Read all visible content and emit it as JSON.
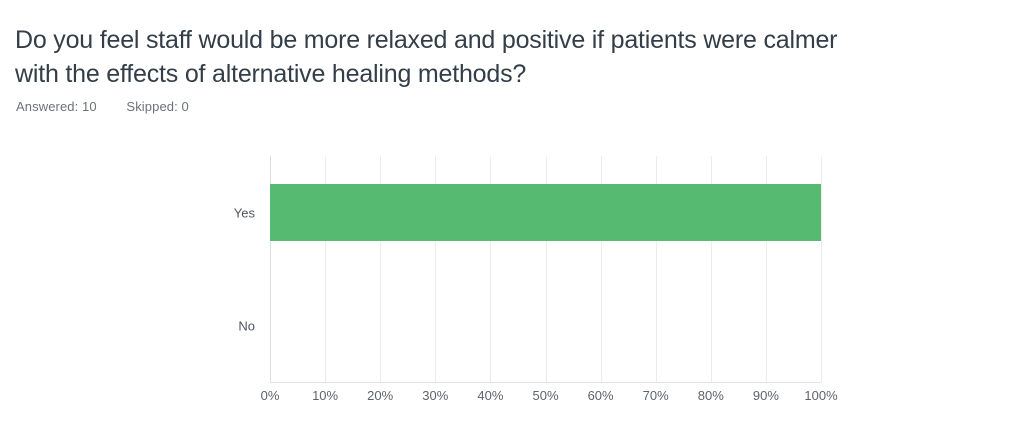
{
  "header": {
    "question": "Do you feel staff would be more relaxed and positive if patients were calmer with the effects of alternative healing methods?",
    "title_lines": [
      "Do you feel staff would be more relaxed and positive if patients were calmer",
      "with the effects of alternative healing methods?"
    ],
    "answered": "Answered: 10",
    "skipped": "Skipped: 0"
  },
  "chart_data": {
    "type": "bar",
    "orientation": "horizontal",
    "categories": [
      "Yes",
      "No"
    ],
    "values": [
      100,
      0
    ],
    "unit": "%",
    "xlim": [
      0,
      100
    ],
    "x_ticks": [
      "0%",
      "10%",
      "20%",
      "30%",
      "40%",
      "50%",
      "60%",
      "70%",
      "80%",
      "90%",
      "100%"
    ],
    "bar_color": "#56ba70",
    "grid": true,
    "legend": false,
    "title": "",
    "xlabel": "",
    "ylabel": ""
  }
}
